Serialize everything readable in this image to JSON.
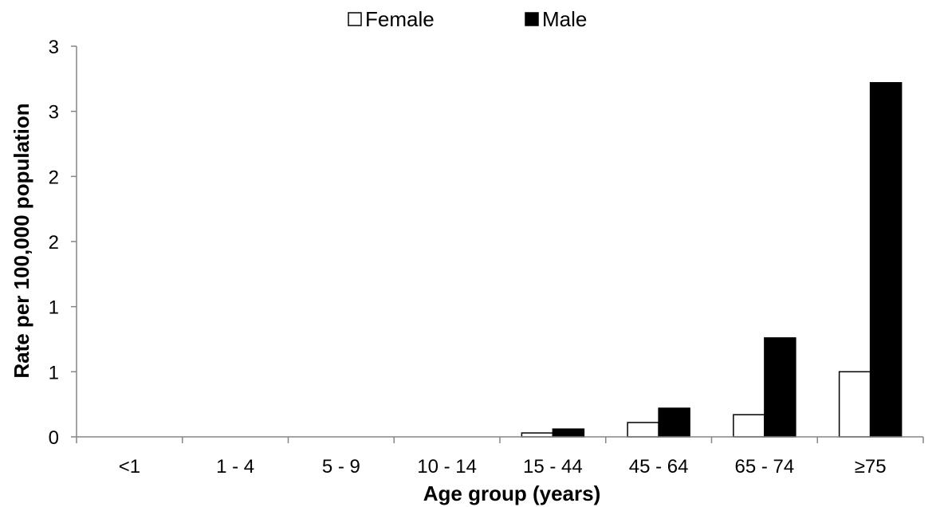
{
  "chart_data": {
    "type": "bar",
    "title": "",
    "xlabel": "Age group (years)",
    "ylabel": "Rate per 100,000 population",
    "categories": [
      "<1",
      "1 - 4",
      "5 - 9",
      "10 - 14",
      "15 - 44",
      "45 - 64",
      "65 - 74",
      "≥75"
    ],
    "series": [
      {
        "name": "Female",
        "values": [
          0,
          0,
          0,
          0,
          0.03,
          0.11,
          0.17,
          0.5
        ],
        "color": "#ffffff"
      },
      {
        "name": "Male",
        "values": [
          0,
          0,
          0,
          0,
          0.06,
          0.22,
          0.76,
          2.72
        ],
        "color": "#000000"
      }
    ],
    "y_tick_labels": [
      "0",
      "1",
      "1",
      "2",
      "2",
      "3",
      "3"
    ],
    "ylim": [
      0,
      3
    ],
    "grid": false,
    "legend_position": "top-center"
  }
}
